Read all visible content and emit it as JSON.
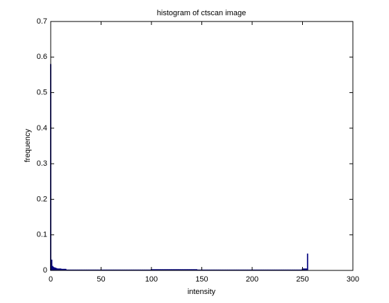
{
  "chart_data": {
    "type": "bar",
    "title": "histogram of ctscan image",
    "x_label": "intensity",
    "y_label": "frequency",
    "x": [
      0,
      1,
      2,
      3,
      4,
      5,
      6,
      7,
      8,
      9,
      10,
      11,
      12,
      13,
      14,
      15,
      16,
      17,
      18,
      19,
      20,
      21,
      22,
      23,
      24,
      25,
      26,
      27,
      28,
      29,
      30,
      31,
      32,
      33,
      34,
      35,
      36,
      37,
      38,
      39,
      40,
      41,
      42,
      43,
      44,
      45,
      46,
      47,
      48,
      49,
      50,
      51,
      52,
      53,
      54,
      55,
      56,
      57,
      58,
      59,
      60,
      61,
      62,
      63,
      64,
      65,
      66,
      67,
      68,
      69,
      70,
      71,
      72,
      73,
      74,
      75,
      76,
      77,
      78,
      79,
      80,
      81,
      82,
      83,
      84,
      85,
      86,
      87,
      88,
      89,
      90,
      91,
      92,
      93,
      94,
      95,
      96,
      97,
      98,
      99,
      100,
      101,
      102,
      103,
      104,
      105,
      106,
      107,
      108,
      109,
      110,
      111,
      112,
      113,
      114,
      115,
      116,
      117,
      118,
      119,
      120,
      121,
      122,
      123,
      124,
      125,
      126,
      127,
      128,
      129,
      130,
      131,
      132,
      133,
      134,
      135,
      136,
      137,
      138,
      139,
      140,
      141,
      142,
      143,
      144,
      145,
      146,
      147,
      148,
      149,
      150,
      151,
      152,
      153,
      154,
      155,
      156,
      157,
      158,
      159,
      160,
      161,
      162,
      163,
      164,
      165,
      166,
      167,
      168,
      169,
      170,
      171,
      172,
      173,
      174,
      175,
      176,
      177,
      178,
      179,
      180,
      181,
      182,
      183,
      184,
      185,
      186,
      187,
      188,
      189,
      190,
      191,
      192,
      193,
      194,
      195,
      196,
      197,
      198,
      199,
      200,
      201,
      202,
      203,
      204,
      205,
      206,
      207,
      208,
      209,
      210,
      211,
      212,
      213,
      214,
      215,
      216,
      217,
      218,
      219,
      220,
      221,
      222,
      223,
      224,
      225,
      226,
      227,
      228,
      229,
      230,
      231,
      232,
      233,
      234,
      235,
      236,
      237,
      238,
      239,
      240,
      241,
      242,
      243,
      244,
      245,
      246,
      247,
      248,
      249,
      250,
      251,
      252,
      253,
      254,
      255
    ],
    "values": [
      0.58,
      0.03,
      0.012,
      0.009,
      0.008,
      0.007,
      0.006,
      0.005,
      0.005,
      0.005,
      0.005,
      0.004,
      0.004,
      0.004,
      0.004,
      0.004,
      0.002,
      0.002,
      0.002,
      0.002,
      0.002,
      0.002,
      0.002,
      0.002,
      0.002,
      0.002,
      0.002,
      0.002,
      0.002,
      0.002,
      0.002,
      0.002,
      0.002,
      0.002,
      0.002,
      0.002,
      0.002,
      0.002,
      0.002,
      0.002,
      0.002,
      0.002,
      0.002,
      0.002,
      0.002,
      0.002,
      0.002,
      0.002,
      0.002,
      0.002,
      0.002,
      0.002,
      0.002,
      0.002,
      0.002,
      0.002,
      0.002,
      0.002,
      0.002,
      0.002,
      0.002,
      0.002,
      0.002,
      0.002,
      0.002,
      0.002,
      0.002,
      0.002,
      0.002,
      0.002,
      0.002,
      0.002,
      0.002,
      0.002,
      0.002,
      0.002,
      0.002,
      0.002,
      0.002,
      0.002,
      0.002,
      0.002,
      0.002,
      0.002,
      0.002,
      0.002,
      0.002,
      0.002,
      0.002,
      0.002,
      0.002,
      0.002,
      0.002,
      0.002,
      0.002,
      0.002,
      0.002,
      0.002,
      0.002,
      0.002,
      0.003,
      0.003,
      0.003,
      0.003,
      0.003,
      0.003,
      0.003,
      0.003,
      0.003,
      0.003,
      0.003,
      0.003,
      0.003,
      0.003,
      0.003,
      0.003,
      0.003,
      0.003,
      0.003,
      0.003,
      0.003,
      0.003,
      0.003,
      0.003,
      0.003,
      0.003,
      0.003,
      0.003,
      0.003,
      0.003,
      0.003,
      0.003,
      0.003,
      0.003,
      0.003,
      0.003,
      0.003,
      0.003,
      0.003,
      0.003,
      0.003,
      0.003,
      0.003,
      0.003,
      0.003,
      0.003,
      0.002,
      0.002,
      0.002,
      0.002,
      0.002,
      0.002,
      0.002,
      0.002,
      0.002,
      0.002,
      0.002,
      0.002,
      0.002,
      0.002,
      0.002,
      0.002,
      0.002,
      0.002,
      0.002,
      0.002,
      0.002,
      0.002,
      0.002,
      0.002,
      0.002,
      0.002,
      0.002,
      0.002,
      0.002,
      0.002,
      0.002,
      0.002,
      0.002,
      0.002,
      0.002,
      0.002,
      0.002,
      0.002,
      0.002,
      0.002,
      0.002,
      0.002,
      0.002,
      0.002,
      0.002,
      0.002,
      0.002,
      0.002,
      0.002,
      0.002,
      0.002,
      0.002,
      0.002,
      0.002,
      0.002,
      0.002,
      0.002,
      0.002,
      0.002,
      0.002,
      0.002,
      0.002,
      0.002,
      0.002,
      0.002,
      0.002,
      0.002,
      0.002,
      0.002,
      0.002,
      0.002,
      0.002,
      0.002,
      0.002,
      0.002,
      0.002,
      0.002,
      0.002,
      0.002,
      0.002,
      0.002,
      0.002,
      0.002,
      0.002,
      0.002,
      0.002,
      0.002,
      0.002,
      0.002,
      0.002,
      0.002,
      0.002,
      0.002,
      0.002,
      0.002,
      0.002,
      0.002,
      0.002,
      0.002,
      0.002,
      0.002,
      0.002,
      0.002,
      0.002,
      0.005,
      0.005,
      0.005,
      0.005,
      0.005,
      0.047
    ],
    "color": "#00007f",
    "xlim": [
      0,
      300
    ],
    "xticks": [
      0,
      50,
      100,
      150,
      200,
      250,
      300
    ],
    "ylim": [
      0,
      0.7
    ],
    "yticks": [
      0,
      0.1,
      0.2,
      0.3,
      0.4,
      0.5,
      0.6,
      0.7
    ],
    "grid": false
  }
}
